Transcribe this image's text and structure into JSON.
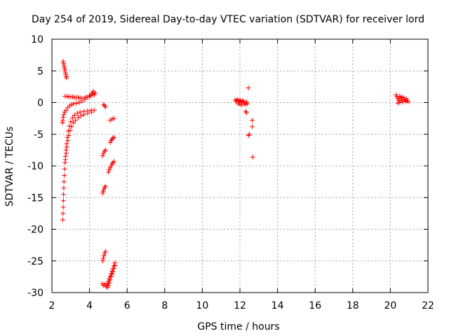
{
  "chart_data": {
    "type": "scatter",
    "title": "Day 254 of 2019, Sidereal Day-to-day VTEC variation (SDTVAR) for receiver lord",
    "xlabel": "GPS time / hours",
    "ylabel": "SDTVAR / TECUs",
    "xlim": [
      2,
      22
    ],
    "ylim": [
      -30,
      10
    ],
    "xticks": [
      2,
      4,
      6,
      8,
      10,
      12,
      14,
      16,
      18,
      20,
      22
    ],
    "yticks": [
      -30,
      -25,
      -20,
      -15,
      -10,
      -5,
      0,
      5,
      10
    ],
    "grid": true,
    "marker": "+",
    "marker_color": "#ff0000",
    "series": [
      {
        "name": "SDTVAR",
        "points": [
          [
            2.6,
            6.5
          ],
          [
            2.62,
            6.2
          ],
          [
            2.64,
            5.9
          ],
          [
            2.66,
            5.6
          ],
          [
            2.68,
            5.3
          ],
          [
            2.7,
            5.0
          ],
          [
            2.72,
            4.7
          ],
          [
            2.74,
            4.4
          ],
          [
            2.76,
            4.1
          ],
          [
            2.78,
            3.9
          ],
          [
            2.58,
            -18.5
          ],
          [
            2.59,
            -17.5
          ],
          [
            2.6,
            -16.5
          ],
          [
            2.61,
            -15.5
          ],
          [
            2.62,
            -14.5
          ],
          [
            2.63,
            -13.5
          ],
          [
            2.64,
            -12.5
          ],
          [
            2.66,
            -11.5
          ],
          [
            2.68,
            -10.5
          ],
          [
            2.7,
            -9.5
          ],
          [
            2.72,
            -8.5
          ],
          [
            2.75,
            -7.5
          ],
          [
            2.78,
            -6.5
          ],
          [
            2.82,
            -5.5
          ],
          [
            2.87,
            -4.5
          ],
          [
            2.93,
            -3.7
          ],
          [
            3.0,
            -3.0
          ],
          [
            3.1,
            -2.4
          ],
          [
            3.2,
            -2.0
          ],
          [
            3.35,
            -1.7
          ],
          [
            3.5,
            -1.5
          ],
          [
            3.7,
            -1.4
          ],
          [
            3.9,
            -1.3
          ],
          [
            4.1,
            -1.2
          ],
          [
            4.25,
            -1.2
          ],
          [
            2.56,
            -3.2
          ],
          [
            2.58,
            -2.8
          ],
          [
            2.6,
            -2.3
          ],
          [
            2.63,
            -1.9
          ],
          [
            2.68,
            -1.5
          ],
          [
            2.75,
            -1.2
          ],
          [
            2.85,
            -0.8
          ],
          [
            2.95,
            -0.5
          ],
          [
            3.05,
            -0.3
          ],
          [
            3.15,
            -0.2
          ],
          [
            3.3,
            -0.1
          ],
          [
            3.45,
            0.0
          ],
          [
            3.6,
            0.2
          ],
          [
            3.75,
            0.5
          ],
          [
            3.9,
            0.8
          ],
          [
            4.05,
            1.0
          ],
          [
            4.15,
            1.3
          ],
          [
            4.2,
            1.6
          ],
          [
            4.25,
            1.2
          ],
          [
            2.7,
            1.0
          ],
          [
            2.8,
            1.0
          ],
          [
            2.9,
            0.9
          ],
          [
            3.0,
            0.9
          ],
          [
            3.1,
            0.9
          ],
          [
            3.2,
            0.8
          ],
          [
            3.3,
            0.8
          ],
          [
            3.4,
            0.8
          ],
          [
            3.5,
            0.7
          ],
          [
            3.6,
            0.7
          ],
          [
            3.8,
            0.9
          ],
          [
            4.0,
            1.1
          ],
          [
            4.1,
            1.4
          ],
          [
            4.2,
            1.8
          ],
          [
            4.3,
            1.5
          ],
          [
            2.72,
            -9.0
          ],
          [
            2.76,
            -8.0
          ],
          [
            2.8,
            -7.0
          ],
          [
            2.85,
            -6.0
          ],
          [
            2.9,
            -5.2
          ],
          [
            2.97,
            -4.4
          ],
          [
            3.05,
            -3.8
          ],
          [
            3.15,
            -3.2
          ],
          [
            3.25,
            -2.8
          ],
          [
            3.4,
            -2.4
          ],
          [
            3.55,
            -2.1
          ],
          [
            3.7,
            -1.9
          ],
          [
            3.9,
            -1.7
          ],
          [
            4.1,
            -1.5
          ],
          [
            4.75,
            -0.3
          ],
          [
            4.8,
            -0.5
          ],
          [
            4.85,
            -0.7
          ],
          [
            5.1,
            -2.8
          ],
          [
            5.2,
            -2.6
          ],
          [
            5.3,
            -2.5
          ],
          [
            5.1,
            -6.3
          ],
          [
            5.15,
            -6.0
          ],
          [
            5.2,
            -5.8
          ],
          [
            5.25,
            -5.6
          ],
          [
            5.3,
            -5.5
          ],
          [
            4.7,
            -8.4
          ],
          [
            4.75,
            -8.0
          ],
          [
            4.8,
            -7.7
          ],
          [
            4.85,
            -7.5
          ],
          [
            5.0,
            -11.0
          ],
          [
            5.05,
            -10.6
          ],
          [
            5.1,
            -10.3
          ],
          [
            5.15,
            -10.0
          ],
          [
            5.2,
            -9.7
          ],
          [
            5.25,
            -9.5
          ],
          [
            5.3,
            -9.3
          ],
          [
            4.7,
            -14.3
          ],
          [
            4.73,
            -14.0
          ],
          [
            4.76,
            -13.7
          ],
          [
            4.8,
            -13.4
          ],
          [
            4.85,
            -13.2
          ],
          [
            4.7,
            -25.0
          ],
          [
            4.73,
            -24.6
          ],
          [
            4.76,
            -24.2
          ],
          [
            4.8,
            -23.8
          ],
          [
            4.85,
            -23.5
          ],
          [
            4.68,
            -28.6
          ],
          [
            4.75,
            -28.9
          ],
          [
            4.82,
            -28.7
          ],
          [
            4.9,
            -29.0
          ],
          [
            4.95,
            -28.6
          ],
          [
            5.0,
            -28.2
          ],
          [
            5.05,
            -27.8
          ],
          [
            5.1,
            -27.4
          ],
          [
            5.15,
            -27.0
          ],
          [
            5.2,
            -26.6
          ],
          [
            5.25,
            -26.2
          ],
          [
            5.3,
            -25.8
          ],
          [
            5.35,
            -25.3
          ],
          [
            4.95,
            -29.2
          ],
          [
            5.0,
            -28.9
          ],
          [
            5.05,
            -28.5
          ],
          [
            5.1,
            -28.0
          ],
          [
            5.15,
            -27.5
          ],
          [
            5.2,
            -27.1
          ],
          [
            5.25,
            -26.7
          ],
          [
            5.3,
            -26.2
          ],
          [
            5.35,
            -25.7
          ],
          [
            11.75,
            0.4
          ],
          [
            11.8,
            0.2
          ],
          [
            11.85,
            0.5
          ],
          [
            11.9,
            0.3
          ],
          [
            11.95,
            0.1
          ],
          [
            12.0,
            0.4
          ],
          [
            12.05,
            0.2
          ],
          [
            12.1,
            0.0
          ],
          [
            12.15,
            0.3
          ],
          [
            12.2,
            0.1
          ],
          [
            12.25,
            -0.1
          ],
          [
            12.3,
            -0.3
          ],
          [
            12.35,
            0.1
          ],
          [
            12.4,
            -0.2
          ],
          [
            11.9,
            -0.2
          ],
          [
            12.0,
            -0.3
          ],
          [
            12.1,
            -0.4
          ],
          [
            12.3,
            -1.4
          ],
          [
            12.35,
            -1.6
          ],
          [
            12.45,
            2.3
          ],
          [
            12.45,
            -5.2
          ],
          [
            12.5,
            -5.0
          ],
          [
            12.65,
            -2.8
          ],
          [
            12.65,
            -3.8
          ],
          [
            12.68,
            -8.6
          ],
          [
            20.3,
            1.2
          ],
          [
            20.35,
            0.9
          ],
          [
            20.4,
            0.6
          ],
          [
            20.45,
            0.3
          ],
          [
            20.5,
            0.0
          ],
          [
            20.55,
            0.7
          ],
          [
            20.6,
            0.4
          ],
          [
            20.65,
            0.1
          ],
          [
            20.7,
            0.8
          ],
          [
            20.75,
            0.5
          ],
          [
            20.8,
            0.2
          ],
          [
            20.85,
            0.6
          ],
          [
            20.9,
            0.3
          ],
          [
            20.95,
            0.1
          ],
          [
            20.5,
            1.0
          ],
          [
            20.6,
            0.9
          ],
          [
            20.4,
            -0.1
          ]
        ]
      }
    ]
  }
}
